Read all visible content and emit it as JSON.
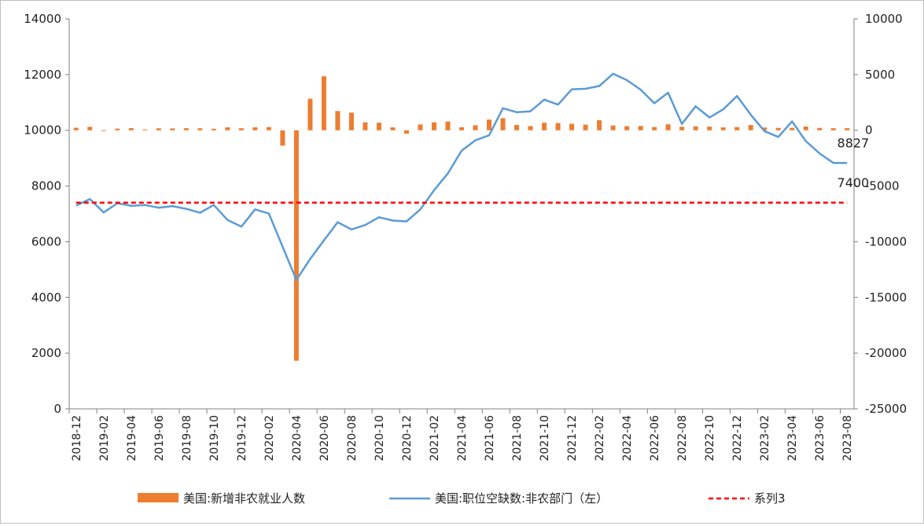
{
  "chart_data": {
    "type": "bar+line",
    "x": [
      "2018-12",
      "2019-01",
      "2019-02",
      "2019-03",
      "2019-04",
      "2019-05",
      "2019-06",
      "2019-07",
      "2019-08",
      "2019-09",
      "2019-10",
      "2019-11",
      "2019-12",
      "2020-01",
      "2020-02",
      "2020-03",
      "2020-04",
      "2020-05",
      "2020-06",
      "2020-07",
      "2020-08",
      "2020-09",
      "2020-10",
      "2020-11",
      "2020-12",
      "2021-01",
      "2021-02",
      "2021-03",
      "2021-04",
      "2021-05",
      "2021-06",
      "2021-07",
      "2021-08",
      "2021-09",
      "2021-10",
      "2021-11",
      "2021-12",
      "2022-01",
      "2022-02",
      "2022-03",
      "2022-04",
      "2022-05",
      "2022-06",
      "2022-07",
      "2022-08",
      "2022-09",
      "2022-10",
      "2022-11",
      "2022-12",
      "2023-01",
      "2023-02",
      "2023-03",
      "2023-04",
      "2023-05",
      "2023-06",
      "2023-07",
      "2023-08"
    ],
    "x_tick_labels": [
      "2018-12",
      "2019-02",
      "2019-04",
      "2019-06",
      "2019-08",
      "2019-10",
      "2019-12",
      "2020-02",
      "2020-04",
      "2020-06",
      "2020-08",
      "2020-10",
      "2020-12",
      "2021-02",
      "2021-04",
      "2021-06",
      "2021-08",
      "2021-10",
      "2021-12",
      "2022-02",
      "2022-04",
      "2022-06",
      "2022-08",
      "2022-10",
      "2022-12",
      "2023-02",
      "2023-04",
      "2023-06",
      "2023-08"
    ],
    "y_left": {
      "min": 0,
      "max": 14000,
      "step": 2000,
      "ticks": [
        "0",
        "2000",
        "4000",
        "6000",
        "8000",
        "10000",
        "12000",
        "14000"
      ]
    },
    "y_right": {
      "min": -25000,
      "max": 10000,
      "step": 5000,
      "ticks": [
        "-25000",
        "-20000",
        "-15000",
        "-10000",
        "-5000",
        "0",
        "5000",
        "10000"
      ]
    },
    "series": [
      {
        "name": "美国:新增非农就业人数",
        "kind": "bar",
        "axis": "right",
        "color": "#ED7D31",
        "values": [
          227,
          312,
          -33,
          147,
          196,
          75,
          178,
          166,
          187,
          180,
          136,
          266,
          184,
          273,
          289,
          -1373,
          -20679,
          2833,
          4846,
          1726,
          1583,
          716,
          680,
          264,
          -306,
          520,
          710,
          785,
          269,
          447,
          962,
          1091,
          483,
          379,
          677,
          647,
          588,
          504,
          904,
          431,
          368,
          386,
          293,
          537,
          315,
          350,
          324,
          263,
          290,
          472,
          248,
          217,
          217,
          339,
          209,
          187,
          187
        ]
      },
      {
        "name": "美国:职位空缺数:非农部门（左）",
        "kind": "line",
        "axis": "left",
        "color": "#5B9BD5",
        "values": [
          7300,
          7530,
          7050,
          7380,
          7290,
          7320,
          7220,
          7280,
          7180,
          7040,
          7320,
          6780,
          6540,
          7160,
          7010,
          5820,
          4630,
          5380,
          6050,
          6700,
          6440,
          6600,
          6880,
          6760,
          6730,
          7160,
          7850,
          8450,
          9270,
          9640,
          9820,
          10790,
          10650,
          10680,
          11100,
          10920,
          11470,
          11490,
          11590,
          12030,
          11800,
          11460,
          10970,
          11350,
          10230,
          10860,
          10460,
          10750,
          11230,
          10560,
          9970,
          9760,
          10320,
          9610,
          9170,
          8830,
          8827
        ]
      },
      {
        "name": "系列3",
        "kind": "line",
        "axis": "left",
        "style": "dashed",
        "color": "#FF0000",
        "values": [
          7400,
          7400,
          7400,
          7400,
          7400,
          7400,
          7400,
          7400,
          7400,
          7400,
          7400,
          7400,
          7400,
          7400,
          7400,
          7400,
          7400,
          7400,
          7400,
          7400,
          7400,
          7400,
          7400,
          7400,
          7400,
          7400,
          7400,
          7400,
          7400,
          7400,
          7400,
          7400,
          7400,
          7400,
          7400,
          7400,
          7400,
          7400,
          7400,
          7400,
          7400,
          7400,
          7400,
          7400,
          7400,
          7400,
          7400,
          7400,
          7400,
          7400,
          7400,
          7400,
          7400,
          7400,
          7400,
          7400,
          7400
        ]
      }
    ],
    "annotations": [
      {
        "text": "8827",
        "series": "美国:职位空缺数:非农部门（左）",
        "at": "2023-08"
      },
      {
        "text": "7400",
        "series": "系列3",
        "at": "2023-08"
      }
    ],
    "legend_position": "bottom",
    "grid": false
  }
}
